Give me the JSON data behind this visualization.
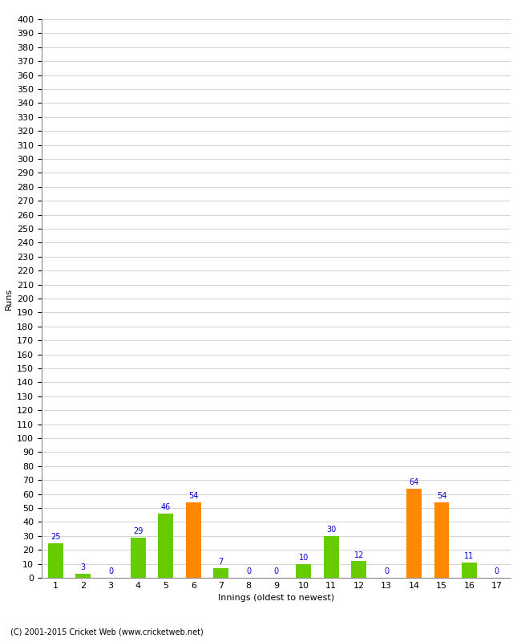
{
  "xlabel": "Innings (oldest to newest)",
  "ylabel": "Runs",
  "innings": [
    1,
    2,
    3,
    4,
    5,
    6,
    7,
    8,
    9,
    10,
    11,
    12,
    13,
    14,
    15,
    16,
    17
  ],
  "values": [
    25,
    3,
    0,
    29,
    46,
    54,
    7,
    0,
    0,
    10,
    30,
    12,
    0,
    64,
    54,
    11,
    0
  ],
  "colors": [
    "#66cc00",
    "#66cc00",
    "#66cc00",
    "#66cc00",
    "#66cc00",
    "#ff8800",
    "#66cc00",
    "#66cc00",
    "#66cc00",
    "#66cc00",
    "#66cc00",
    "#66cc00",
    "#66cc00",
    "#ff8800",
    "#ff8800",
    "#66cc00",
    "#66cc00"
  ],
  "ylim": [
    0,
    400
  ],
  "yticks": [
    0,
    10,
    20,
    30,
    40,
    50,
    60,
    70,
    80,
    90,
    100,
    110,
    120,
    130,
    140,
    150,
    160,
    170,
    180,
    190,
    200,
    210,
    220,
    230,
    240,
    250,
    260,
    270,
    280,
    290,
    300,
    310,
    320,
    330,
    340,
    350,
    360,
    370,
    380,
    390,
    400
  ],
  "label_color": "#0000cc",
  "grid_color": "#cccccc",
  "background_color": "#ffffff",
  "footer": "(C) 2001-2015 Cricket Web (www.cricketweb.net)",
  "axis_fontsize": 8,
  "label_fontsize": 7,
  "footer_fontsize": 7,
  "bar_width": 0.55
}
